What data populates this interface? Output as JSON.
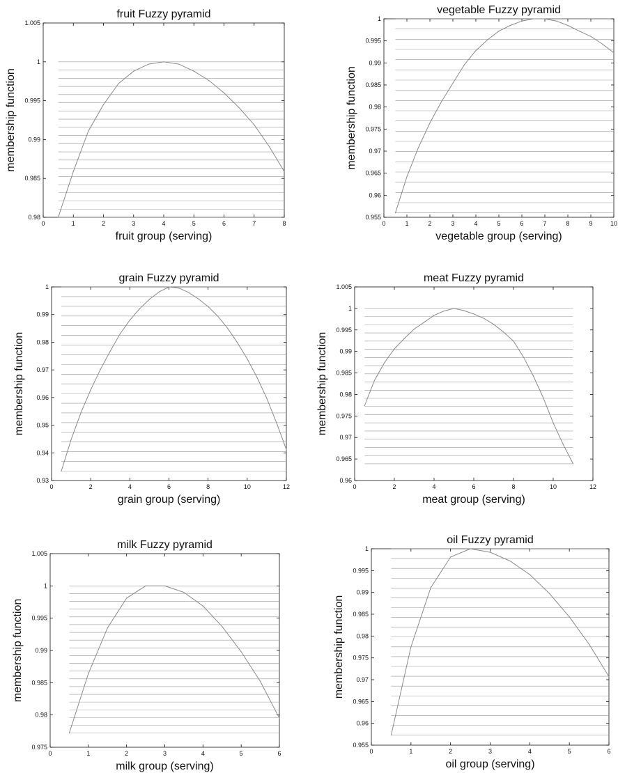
{
  "chart_data": [
    {
      "type": "line",
      "title": "fruit Fuzzy pyramid",
      "xlabel": "fruit group (serving)",
      "ylabel": "membership function",
      "xlim": [
        0,
        8
      ],
      "ylim": [
        0.98,
        1.005
      ],
      "xticks": [
        "0",
        "1",
        "2",
        "3",
        "4",
        "5",
        "6",
        "7",
        "8"
      ],
      "yticks": [
        "0.98",
        "0.985",
        "0.99",
        "0.995",
        "1",
        "1.005"
      ],
      "x": [
        0.5,
        1,
        1.5,
        2,
        2.5,
        3,
        3.5,
        4,
        4.5,
        5,
        5.5,
        6,
        6.5,
        7,
        7.5,
        8
      ],
      "y": [
        0.98,
        0.9859,
        0.9911,
        0.9945,
        0.9972,
        0.9988,
        0.9997,
        1.0,
        0.9997,
        0.9988,
        0.9976,
        0.996,
        0.9941,
        0.9919,
        0.9891,
        0.9859
      ],
      "hlines": {
        "from": 0.5,
        "to": 8,
        "count": 20,
        "y_start": 0.98,
        "y_end": 1.0
      }
    },
    {
      "type": "line",
      "title": "vegetable Fuzzy pyramid",
      "xlabel": "vegetable group (serving)",
      "ylabel": "membership function",
      "xlim": [
        0,
        10
      ],
      "ylim": [
        0.955,
        1
      ],
      "xticks": [
        "0",
        "1",
        "2",
        "3",
        "4",
        "5",
        "6",
        "7",
        "8",
        "9",
        "10"
      ],
      "yticks": [
        "0.955",
        "0.96",
        "0.965",
        "0.97",
        "0.975",
        "0.98",
        "0.985",
        "0.99",
        "0.995",
        "1"
      ],
      "x": [
        0.5,
        1,
        1.5,
        2,
        2.5,
        3,
        3.5,
        4,
        4.5,
        5,
        5.5,
        6,
        6.5,
        7,
        7.5,
        8,
        8.5,
        9,
        9.5,
        10
      ],
      "y": [
        0.956,
        0.9642,
        0.9708,
        0.9764,
        0.9812,
        0.9854,
        0.9896,
        0.9928,
        0.9952,
        0.9972,
        0.9985,
        0.9995,
        1.0,
        1.0,
        0.9995,
        0.9985,
        0.9972,
        0.996,
        0.9943,
        0.9923
      ],
      "hlines": {
        "from": 0.5,
        "to": 10,
        "count": 20,
        "y_start": 0.956,
        "y_end": 1.0
      }
    },
    {
      "type": "line",
      "title": "grain Fuzzy pyramid",
      "xlabel": "grain group (serving)",
      "ylabel": "membership function",
      "xlim": [
        0,
        12
      ],
      "ylim": [
        0.93,
        1
      ],
      "xticks": [
        "0",
        "2",
        "4",
        "6",
        "8",
        "10",
        "12"
      ],
      "yticks": [
        "0.93",
        "0.94",
        "0.95",
        "0.96",
        "0.97",
        "0.98",
        "0.99",
        "1"
      ],
      "x": [
        0.5,
        1,
        1.5,
        2,
        2.5,
        3,
        3.5,
        4,
        4.5,
        5,
        5.5,
        6,
        6.5,
        7,
        7.5,
        8,
        8.5,
        9,
        9.5,
        10,
        10.5,
        11,
        11.5,
        12
      ],
      "y": [
        0.9334,
        0.9448,
        0.9545,
        0.9628,
        0.9702,
        0.9768,
        0.983,
        0.988,
        0.9921,
        0.9955,
        0.9982,
        1.0,
        0.9996,
        0.998,
        0.9957,
        0.9929,
        0.9894,
        0.985,
        0.9798,
        0.974,
        0.9673,
        0.9597,
        0.9508,
        0.9412
      ],
      "hlines": {
        "from": 0.5,
        "to": 12,
        "count": 20,
        "y_start": 0.9334,
        "y_end": 1.0
      }
    },
    {
      "type": "line",
      "title": "meat Fuzzy pyramid",
      "xlabel": "meat group (serving)",
      "ylabel": "membership function",
      "xlim": [
        0,
        12
      ],
      "ylim": [
        0.96,
        1.005
      ],
      "xticks": [
        "0",
        "2",
        "4",
        "6",
        "8",
        "10",
        "12"
      ],
      "yticks": [
        "0.96",
        "0.965",
        "0.97",
        "0.975",
        "0.98",
        "0.985",
        "0.99",
        "0.995",
        "1",
        "1.005"
      ],
      "x": [
        0.5,
        1,
        1.5,
        2,
        2.5,
        3,
        3.5,
        4,
        4.5,
        5,
        5.5,
        6,
        6.5,
        7,
        7.5,
        8,
        8.5,
        9,
        9.5,
        10,
        10.5,
        11
      ],
      "y": [
        0.9774,
        0.9833,
        0.9874,
        0.9906,
        0.993,
        0.9952,
        0.9968,
        0.9984,
        0.9994,
        1.0,
        0.9995,
        0.9987,
        0.9977,
        0.9963,
        0.9945,
        0.9924,
        0.9887,
        0.9843,
        0.9792,
        0.9734,
        0.9684,
        0.9639
      ],
      "hlines": {
        "from": 0.5,
        "to": 11,
        "count": 20,
        "y_start": 0.9639,
        "y_end": 1.0
      }
    },
    {
      "type": "line",
      "title": "milk Fuzzy pyramid",
      "xlabel": "milk group (serving)",
      "ylabel": "membership function",
      "xlim": [
        0,
        6
      ],
      "ylim": [
        0.975,
        1.005
      ],
      "xticks": [
        "0",
        "1",
        "2",
        "3",
        "4",
        "5",
        "6"
      ],
      "yticks": [
        "0.975",
        "0.98",
        "0.985",
        "0.99",
        "0.995",
        "1",
        "1.005"
      ],
      "x": [
        0.5,
        1,
        1.5,
        2,
        2.5,
        3,
        3.5,
        4,
        4.5,
        5,
        5.5,
        6
      ],
      "y": [
        0.9772,
        0.9864,
        0.9935,
        0.9981,
        1.0,
        1.0,
        0.999,
        0.9969,
        0.9937,
        0.9898,
        0.9852,
        0.9795
      ],
      "hlines": {
        "from": 0.5,
        "to": 6,
        "count": 20,
        "y_start": 0.9772,
        "y_end": 1.0
      }
    },
    {
      "type": "line",
      "title": "oil Fuzzy pyramid",
      "xlabel": "oil group (serving)",
      "ylabel": "membership function",
      "xlim": [
        0,
        6
      ],
      "ylim": [
        0.955,
        1
      ],
      "xticks": [
        "0",
        "1",
        "2",
        "3",
        "4",
        "5",
        "6"
      ],
      "yticks": [
        "0.955",
        "0.96",
        "0.965",
        "0.97",
        "0.975",
        "0.98",
        "0.985",
        "0.99",
        "0.995",
        "1"
      ],
      "x": [
        0.5,
        1,
        1.5,
        2,
        2.5,
        3,
        3.5,
        4,
        4.5,
        5,
        5.5,
        6
      ],
      "y": [
        0.9573,
        0.9775,
        0.9911,
        0.9981,
        1.0,
        0.9992,
        0.9972,
        0.9941,
        0.9897,
        0.9844,
        0.9781,
        0.9707
      ],
      "hlines": {
        "from": 0.5,
        "to": 6,
        "count": 20,
        "y_start": 0.9573,
        "y_end": 1.0
      }
    }
  ]
}
